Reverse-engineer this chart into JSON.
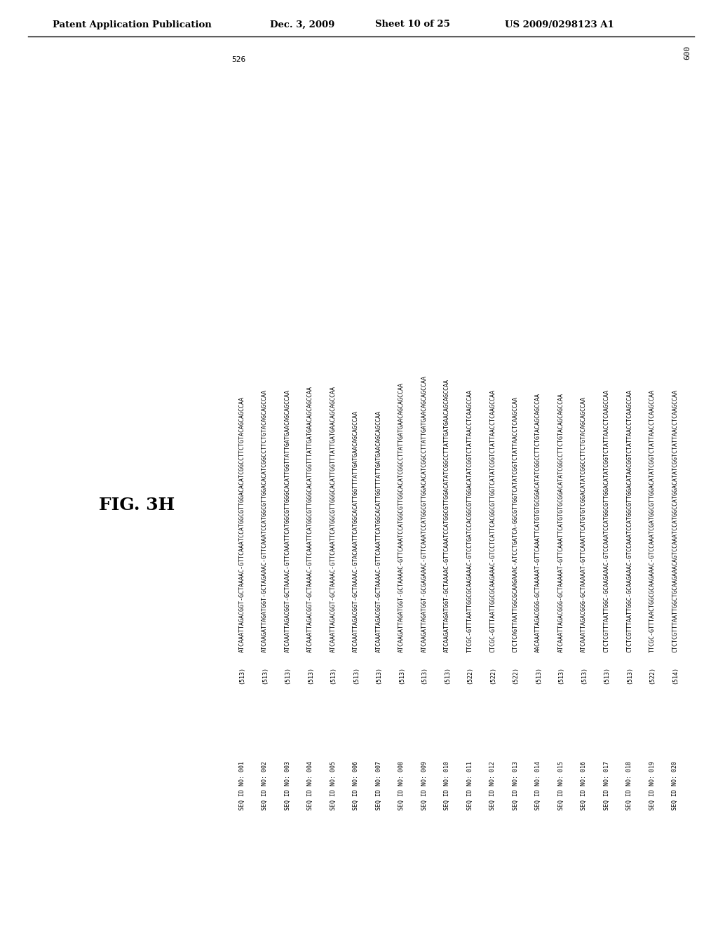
{
  "title_header_left": "Patent Application Publication",
  "title_header_center": "Dec. 3, 2009",
  "title_header_center2": "Sheet 10 of 25",
  "title_header_right": "US 2009/0298123 A1",
  "fig_label": "FIG. 3H",
  "position_label": "526",
  "end_label": "600",
  "sequences": [
    {
      "id": "SEQ ID NO: 001",
      "num": "(513)",
      "seq": "ATCAAATTAGACGGT-GCTAAAAC-GTTCAAATCCATGGCGTTGGACACATCGGCCTTCTGTACAGCAGCCAA"
    },
    {
      "id": "SEQ ID NO: 002",
      "num": "(513)",
      "seq": "ATCAAGATTAGATGGT-GCTAGAAAC-GTTCAAATCCATGGCGTTGGACACATCGGCCTTCTGTACAGCAGCCAA"
    },
    {
      "id": "SEQ ID NO: 003",
      "num": "(513)",
      "seq": "ATCAAATTAGACGGT-GCTAAAAC-GTTCAAATTCATGGCGTTGGGCACATTGGTTATTGATGAACAGCAGCCAA"
    },
    {
      "id": "SEQ ID NO: 004",
      "num": "(513)",
      "seq": "ATCAAATTAGACGGT-GCTAAAAC-GTTCAAATTCATGGCGTTGGGCACATTGGTTTATTGATGAACAGCAGCCAA"
    },
    {
      "id": "SEQ ID NO: 005",
      "num": "(513)",
      "seq": "ATCAAATTAGACGGT-GCTAAAAC-GTTCAAATTCATGGCGTTGGGCACATTGGTTTATTGATGAACAGCAGCCAA"
    },
    {
      "id": "SEQ ID NO: 006",
      "num": "(513)",
      "seq": "ATCAAATTAGACGGT-GCTAAAAC-GTACAAATTCATGGCACATTGGTTTATTGATGAACAGCAGCCAA"
    },
    {
      "id": "SEQ ID NO: 007",
      "num": "(513)",
      "seq": "ATCAAATTAGACGGT-GCTAAAAC-GTTCAAATTCATGGCACATTGGTTTATTGATGAACAGCAGCCAA"
    },
    {
      "id": "SEQ ID NO: 008",
      "num": "(513)",
      "seq": "ATCAAGATTAGATGGT-GCTAAAAC-GTTCAAATCCATGGCGTTGGCACATCGGCCTTATTGATGAACAGCAGCCAA"
    },
    {
      "id": "SEQ ID NO: 009",
      "num": "(513)",
      "seq": "ATCAAGATTAGATGGT-GCGAGAAAC-GTTCAAATCCATGGCGTTGGACACATCGGCCTTATTGATGAACAGCAGCCAA"
    },
    {
      "id": "SEQ ID NO: 010",
      "num": "(513)",
      "seq": "ATCAAGATTAGATGGT-GCTAAAAC-GTTCAAATCCATGGCGTTGGACATATCGGCCTTATTGATGAACAGCAGCCAA"
    },
    {
      "id": "SEQ ID NO: 011",
      "num": "(522)",
      "seq": "TTCGC-GTTTAATTGGCGCAAGAAAC-GTCCTGATCCACGGCGTTGGACATATCGGTCTATTAACCTCAAGCCAA"
    },
    {
      "id": "SEQ ID NO: 012",
      "num": "(522)",
      "seq": "CTCGC-GTTTAATTGGCGCAAGAAAC-GTCCTCATTCACGGCGTTGGTCATATCGGTCTATTAACCTCAAGCCAA"
    },
    {
      "id": "SEQ ID NO: 013",
      "num": "(522)",
      "seq": "CTCTCAGTTAATTGGCGCAAGAAAC-ATCCTGATCA-GGCGTTGGTCATATCGGTCTATTAACCTCAAGCCAA"
    },
    {
      "id": "SEQ ID NO: 014",
      "num": "(513)",
      "seq": "AACAAATTAGACGGG-GCTAAAAAT-GTTCAAATTCATGTGTGCGGACATATCGGCCTTCTGTACAGCAGCCAA"
    },
    {
      "id": "SEQ ID NO: 015",
      "num": "(513)",
      "seq": "ATCAAATTAGACGGG-GCTAAAAAT-GTTCAAATTCATGTGTGCGGACATATCGGCCTTCTGTACAGCAGCCAA"
    },
    {
      "id": "SEQ ID NO: 016",
      "num": "(513)",
      "seq": "ATCAAATTAGACGGG-GCTAAAAAT-GTTCAAATTCATGTGTCGGACATATCGGCCTTCTGTACAGCAGCCAA"
    },
    {
      "id": "SEQ ID NO: 017",
      "num": "(513)",
      "seq": "CTCTCGTTTAATTGGC-GCAAGAAAC-GTCCAAATCCATGGCGTTGGACATATCGGTCTATTAACCTCAAGCCAA"
    },
    {
      "id": "SEQ ID NO: 018",
      "num": "(513)",
      "seq": "CTCTCGTTTAATTGGC-GCAAGAAAC-GTCCAAATCCATGGCGTTGGACATAACGGTCTATTAACCTCAAGCCAA"
    },
    {
      "id": "SEQ ID NO: 019",
      "num": "(522)",
      "seq": "TTCGC-GTTTAACTGGCGCAAGAAAC-GTCCAAATCGATGGCGTTGGACATATCGGTCTATTAACCTCAAGCCAA"
    },
    {
      "id": "SEQ ID NO: 020",
      "num": "(514)",
      "seq": "CTCTCGTTTAATTGGCTGCAAGAAACAGTCCAAATCCATGGCCATGGACATATCGGTCTATTAACCTCAAGCCAA"
    }
  ]
}
